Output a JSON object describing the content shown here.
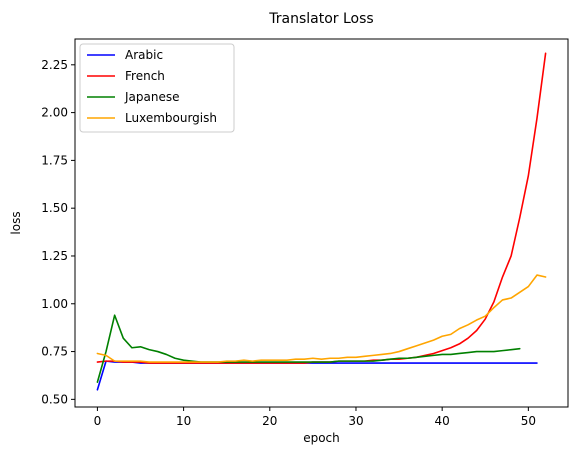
{
  "chart_data": {
    "type": "line",
    "title": "Translator Loss",
    "xlabel": "epoch",
    "ylabel": "loss",
    "xlim": [
      -2.6,
      54.6
    ],
    "ylim": [
      0.46,
      2.385
    ],
    "xticks": [
      0,
      10,
      20,
      30,
      40,
      50
    ],
    "xtick_labels": [
      "0",
      "10",
      "20",
      "30",
      "40",
      "50"
    ],
    "yticks": [
      0.5,
      0.75,
      1.0,
      1.25,
      1.5,
      1.75,
      2.0,
      2.25
    ],
    "ytick_labels": [
      "0.50",
      "0.75",
      "1.00",
      "1.25",
      "1.50",
      "1.75",
      "2.00",
      "2.25"
    ],
    "grid": false,
    "legend_position": "top-left",
    "series": [
      {
        "name": "Arabic",
        "color": "#0000ff",
        "x": [
          0,
          1,
          2,
          3,
          4,
          5,
          6,
          7,
          8,
          9,
          10,
          11,
          12,
          13,
          14,
          15,
          16,
          17,
          18,
          19,
          20,
          21,
          22,
          23,
          24,
          25,
          26,
          27,
          28,
          29,
          30,
          31,
          32,
          33,
          34,
          35,
          36,
          37,
          38,
          39,
          40,
          41,
          42,
          43,
          44,
          45,
          46,
          47,
          48,
          49,
          50,
          51
        ],
        "y": [
          0.55,
          0.7,
          0.695,
          0.695,
          0.695,
          0.69,
          0.69,
          0.69,
          0.69,
          0.69,
          0.69,
          0.69,
          0.69,
          0.69,
          0.69,
          0.69,
          0.69,
          0.69,
          0.69,
          0.69,
          0.69,
          0.69,
          0.69,
          0.69,
          0.69,
          0.69,
          0.69,
          0.69,
          0.69,
          0.69,
          0.69,
          0.69,
          0.69,
          0.69,
          0.69,
          0.69,
          0.69,
          0.69,
          0.69,
          0.69,
          0.69,
          0.69,
          0.69,
          0.69,
          0.69,
          0.69,
          0.69,
          0.69,
          0.69,
          0.69,
          0.69,
          0.69
        ]
      },
      {
        "name": "French",
        "color": "#ff0000",
        "x": [
          0,
          1,
          2,
          3,
          4,
          5,
          6,
          7,
          8,
          9,
          10,
          11,
          12,
          13,
          14,
          15,
          16,
          17,
          18,
          19,
          20,
          21,
          22,
          23,
          24,
          25,
          26,
          27,
          28,
          29,
          30,
          31,
          32,
          33,
          34,
          35,
          36,
          37,
          38,
          39,
          40,
          41,
          42,
          43,
          44,
          45,
          46,
          47,
          48,
          49,
          50,
          51,
          52
        ],
        "y": [
          0.695,
          0.7,
          0.7,
          0.695,
          0.695,
          0.695,
          0.69,
          0.69,
          0.69,
          0.69,
          0.69,
          0.69,
          0.69,
          0.69,
          0.69,
          0.69,
          0.69,
          0.69,
          0.69,
          0.69,
          0.69,
          0.69,
          0.69,
          0.69,
          0.69,
          0.695,
          0.695,
          0.695,
          0.7,
          0.7,
          0.7,
          0.7,
          0.705,
          0.705,
          0.71,
          0.71,
          0.715,
          0.72,
          0.73,
          0.74,
          0.755,
          0.77,
          0.79,
          0.82,
          0.86,
          0.92,
          1.01,
          1.14,
          1.25,
          1.45,
          1.67,
          1.97,
          2.31
        ]
      },
      {
        "name": "Japanese",
        "color": "#008000",
        "x": [
          0,
          1,
          2,
          3,
          4,
          5,
          6,
          7,
          8,
          9,
          10,
          11,
          12,
          13,
          14,
          15,
          16,
          17,
          18,
          19,
          20,
          21,
          22,
          23,
          24,
          25,
          26,
          27,
          28,
          29,
          30,
          31,
          32,
          33,
          34,
          35,
          36,
          37,
          38,
          39,
          40,
          41,
          42,
          43,
          44,
          45,
          46,
          47,
          48,
          49
        ],
        "y": [
          0.59,
          0.75,
          0.94,
          0.82,
          0.77,
          0.775,
          0.76,
          0.75,
          0.735,
          0.715,
          0.705,
          0.7,
          0.695,
          0.695,
          0.695,
          0.695,
          0.695,
          0.695,
          0.695,
          0.695,
          0.695,
          0.695,
          0.695,
          0.695,
          0.695,
          0.695,
          0.695,
          0.695,
          0.7,
          0.7,
          0.7,
          0.7,
          0.7,
          0.705,
          0.71,
          0.715,
          0.715,
          0.72,
          0.725,
          0.73,
          0.735,
          0.735,
          0.74,
          0.745,
          0.75,
          0.75,
          0.75,
          0.755,
          0.76,
          0.765
        ]
      },
      {
        "name": "Luxembourgish",
        "color": "#ffa500",
        "x": [
          0,
          1,
          2,
          3,
          4,
          5,
          6,
          7,
          8,
          9,
          10,
          11,
          12,
          13,
          14,
          15,
          16,
          17,
          18,
          19,
          20,
          21,
          22,
          23,
          24,
          25,
          26,
          27,
          28,
          29,
          30,
          31,
          32,
          33,
          34,
          35,
          36,
          37,
          38,
          39,
          40,
          41,
          42,
          43,
          44,
          45,
          46,
          47,
          48,
          49,
          50,
          51,
          52
        ],
        "y": [
          0.74,
          0.73,
          0.7,
          0.7,
          0.7,
          0.7,
          0.695,
          0.695,
          0.695,
          0.695,
          0.695,
          0.695,
          0.695,
          0.695,
          0.695,
          0.7,
          0.7,
          0.705,
          0.7,
          0.705,
          0.705,
          0.705,
          0.705,
          0.71,
          0.71,
          0.715,
          0.71,
          0.715,
          0.715,
          0.72,
          0.72,
          0.725,
          0.73,
          0.735,
          0.74,
          0.75,
          0.765,
          0.78,
          0.795,
          0.81,
          0.83,
          0.84,
          0.87,
          0.89,
          0.915,
          0.935,
          0.98,
          1.02,
          1.03,
          1.06,
          1.09,
          1.15,
          1.14
        ]
      }
    ]
  }
}
